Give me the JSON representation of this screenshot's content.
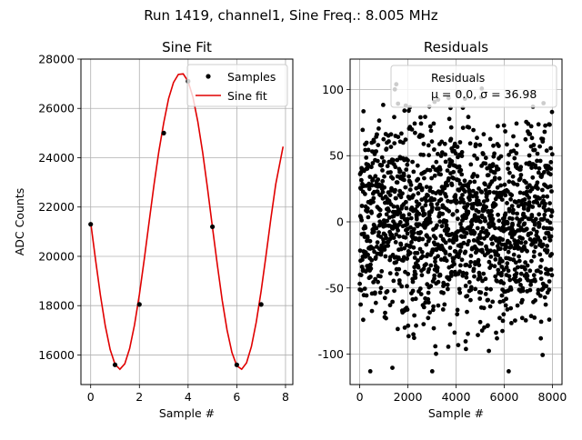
{
  "suptitle": "Run 1419, channel1, Sine Freq.: 8.005 MHz",
  "chart_data": [
    {
      "type": "line",
      "title": "Sine Fit",
      "xlabel": "Sample #",
      "ylabel": "ADC Counts",
      "xlim": [
        -0.4,
        8.3
      ],
      "ylim": [
        14800,
        28000
      ],
      "grid": true,
      "legend_position": "top-right",
      "xticks": [
        0,
        2,
        4,
        6,
        8
      ],
      "yticks": [
        16000,
        18000,
        20000,
        22000,
        24000,
        26000,
        28000
      ],
      "series": [
        {
          "name": "Samples",
          "kind": "scatter",
          "color": "#000000",
          "x": [
            0,
            1,
            2,
            3,
            4,
            5,
            6,
            7
          ],
          "y": [
            21300,
            15600,
            18050,
            25000,
            27100,
            21200,
            15600,
            18050
          ]
        },
        {
          "name": "Sine fit",
          "kind": "line",
          "color": "#e00000",
          "x": [
            0.0,
            0.2,
            0.4,
            0.6,
            0.8,
            1.0,
            1.2,
            1.4,
            1.6,
            1.8,
            2.0,
            2.2,
            2.4,
            2.6,
            2.8,
            3.0,
            3.2,
            3.4,
            3.6,
            3.8,
            4.0,
            4.2,
            4.4,
            4.6,
            4.8,
            5.0,
            5.2,
            5.4,
            5.6,
            5.8,
            6.0,
            6.2,
            6.4,
            6.6,
            6.8,
            7.0,
            7.2,
            7.4,
            7.6,
            7.9
          ],
          "y": [
            21380,
            19860,
            18420,
            17180,
            16220,
            15620,
            15420,
            15640,
            16260,
            17220,
            18450,
            19880,
            21400,
            22900,
            24260,
            25420,
            26400,
            27050,
            27380,
            27400,
            27100,
            26450,
            25460,
            24200,
            22740,
            21180,
            19660,
            18220,
            17010,
            16100,
            15560,
            15420,
            15680,
            16340,
            17340,
            18600,
            20040,
            21540,
            22930,
            24450
          ]
        }
      ]
    },
    {
      "type": "scatter",
      "title": "Residuals",
      "xlabel": "Sample #",
      "ylabel": "",
      "xlim": [
        -400,
        8400
      ],
      "ylim": [
        -123,
        123
      ],
      "grid": true,
      "legend_position": "top-right",
      "xticks": [
        0,
        2000,
        4000,
        6000,
        8000
      ],
      "yticks": [
        -100,
        -50,
        0,
        50,
        100
      ],
      "series": [
        {
          "name": "Residuals",
          "color": "#000000",
          "n_points": 8000,
          "mean": 0.0,
          "std": 36.98,
          "envelope_min": -113,
          "envelope_max": 104
        }
      ],
      "legend_stats": "μ = 0.0, σ = 36.98"
    }
  ]
}
